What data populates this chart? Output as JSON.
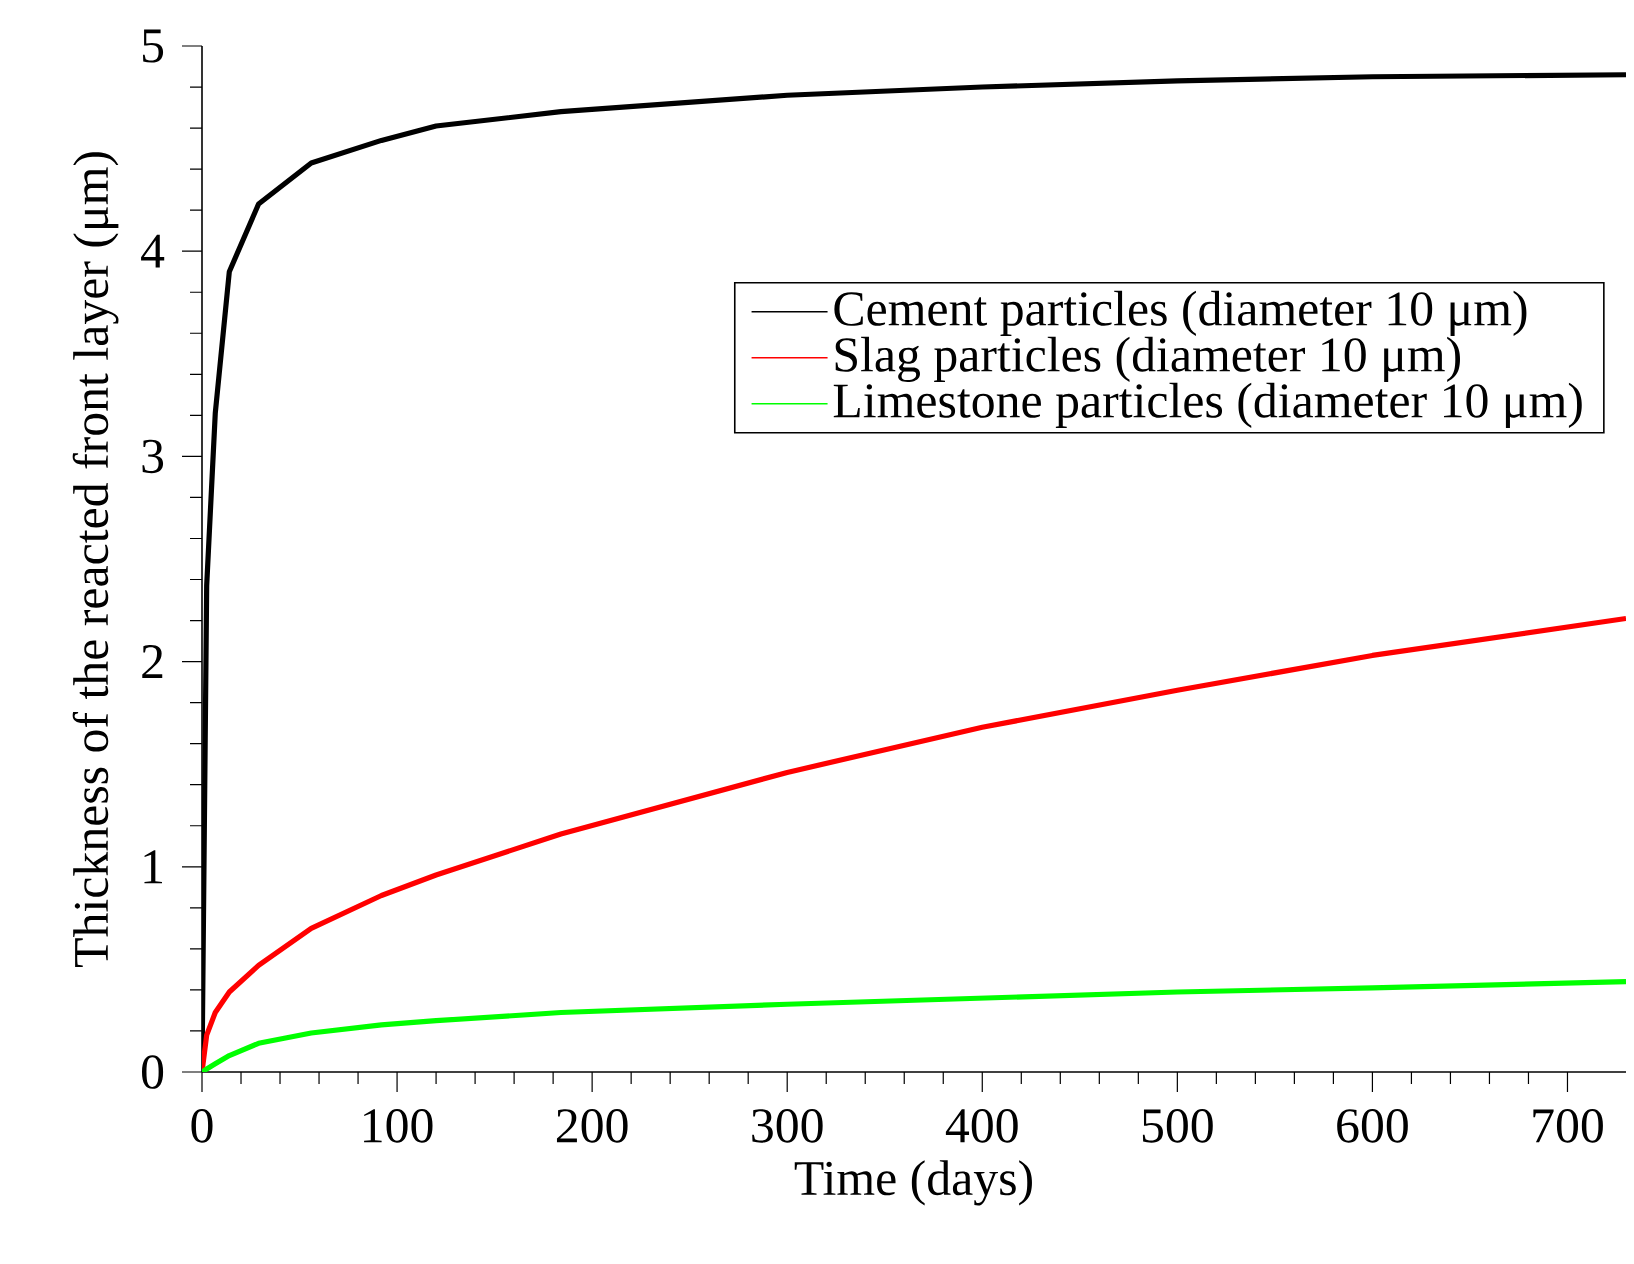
{
  "chart_data": {
    "type": "line",
    "xlabel": "Time (days)",
    "ylabel": "Thickness of the reacted front layer (μm)",
    "x": [
      0,
      2.4,
      6.8,
      14,
      29,
      56,
      92,
      120,
      184,
      300,
      400,
      500,
      600,
      730
    ],
    "series": [
      {
        "name": "Cement particles (diameter 10 μm)",
        "color": "#000000",
        "values": [
          0,
          2.37,
          3.21,
          3.9,
          4.23,
          4.43,
          4.54,
          4.61,
          4.68,
          4.76,
          4.8,
          4.83,
          4.85,
          4.86
        ]
      },
      {
        "name": "Slag particles (diameter 10 μm)",
        "color": "#ff0000",
        "values": [
          0,
          0.18,
          0.29,
          0.39,
          0.52,
          0.7,
          0.86,
          0.96,
          1.16,
          1.46,
          1.68,
          1.86,
          2.03,
          2.21
        ]
      },
      {
        "name": "Limestone particles (diameter 10 μm)",
        "color": "#00ff00",
        "values": [
          0,
          0.015,
          0.04,
          0.08,
          0.14,
          0.19,
          0.23,
          0.25,
          0.29,
          0.33,
          0.36,
          0.39,
          0.41,
          0.44
        ]
      }
    ],
    "xlim": [
      0,
      730
    ],
    "ylim": [
      0,
      5
    ],
    "xticks": [
      0,
      100,
      200,
      300,
      400,
      500,
      600,
      700
    ],
    "yticks": [
      0,
      1,
      2,
      3,
      4,
      5
    ],
    "legend": "top right",
    "grid": false
  }
}
